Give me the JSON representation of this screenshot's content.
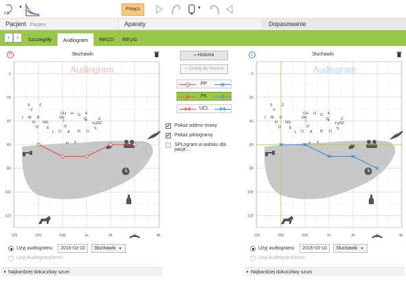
{
  "toolbar": {
    "connect_label": "Połącz",
    "icon_logo_label": "0.3"
  },
  "nav": {
    "patient_label": "Pacjent",
    "patient_name": "Pacjent",
    "devices_label": "Aparaty",
    "fitting_label": "Dopasowanie"
  },
  "subnav": {
    "tabs": [
      "Szczegóły",
      "Audiogram",
      "RECD",
      "REUG"
    ],
    "active": "Audiogram"
  },
  "left_panel": {
    "side_badge": "P",
    "title": "Słuchawki",
    "watermark": "Audiogram"
  },
  "right_panel": {
    "side_badge": "L",
    "title": "Słuchawki",
    "watermark": "Audiogram"
  },
  "middle": {
    "history_btn": "Historia",
    "add_history_btn": "Dodaj do historii",
    "legend": [
      {
        "code": "PP"
      },
      {
        "code": "PK"
      },
      {
        "code": "UCL"
      }
    ],
    "checkboxes": [
      {
        "label": "Pokaż widmo mowy",
        "checked": true
      },
      {
        "label": "Pokaż piktogramy",
        "checked": true
      },
      {
        "label": "SPLogram w widoku dla pacje...",
        "checked": false
      }
    ]
  },
  "axis": {
    "x_ticks": [
      "125",
      "250",
      "500",
      "1k",
      "2k",
      "4k",
      "8k"
    ],
    "y_ticks": [
      "0",
      "20",
      "40",
      "60",
      "80",
      "100",
      "120"
    ]
  },
  "speech_letters": [
    "S",
    "Z",
    "V",
    "J",
    "M",
    "B",
    "N",
    "NG",
    "D",
    "E",
    "L",
    "U",
    "CH",
    "SH",
    "H",
    "G",
    "K",
    "F",
    "TH",
    "I",
    "O",
    "A",
    "R",
    "P",
    "T",
    "C",
    "Z",
    "SZ",
    "S",
    "U"
  ],
  "chart_data": [
    {
      "type": "line",
      "title": "Słuchawki",
      "x": [
        "250",
        "500",
        "1k",
        "2k",
        "4k"
      ],
      "series": [
        {
          "values": [
            60,
            70,
            70,
            60,
            60
          ],
          "color": "#e04848"
        }
      ],
      "ylim": [
        -10,
        130
      ],
      "grid": true
    },
    {
      "type": "line",
      "title": "Słuchawki",
      "x": [
        "250",
        "500",
        "1k",
        "2k",
        "4k"
      ],
      "series": [
        {
          "values": [
            60,
            60,
            70,
            70,
            80
          ],
          "color": "#3a86d0"
        }
      ],
      "ylim": [
        -10,
        130
      ],
      "grid": true
    }
  ],
  "bottom_left": {
    "use_audiogram": "Użyj audiogramu",
    "date": "2016-03-10",
    "source": "Słuchawki",
    "use_direct": "Użyj AudiogramDirect",
    "noise": "Najbardziej dokuczliwy szum"
  },
  "bottom_right": {
    "use_audiogram": "Użyj audiogramu",
    "date": "2016-03-10",
    "source": "Słuchawki",
    "use_direct": "Użyj AudiogramDirect",
    "noise": "Najbardziej dokuczliwy szum"
  }
}
